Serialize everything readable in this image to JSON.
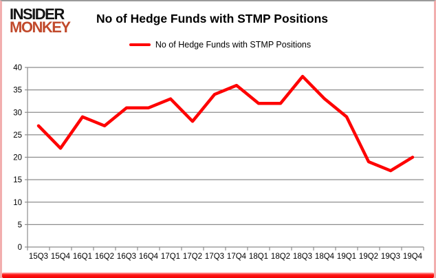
{
  "branding": {
    "logo_line1": "INSIDER",
    "logo_line2": "MONKEY",
    "logo_color1": "#141414",
    "logo_color2": "#c14a2c"
  },
  "header": {
    "title": "No of Hedge Funds with STMP Positions"
  },
  "legend": {
    "label": "No of Hedge Funds with STMP Positions"
  },
  "chart_data": {
    "type": "line",
    "title": "No of Hedge Funds with STMP Positions",
    "categories": [
      "15Q3",
      "15Q4",
      "16Q1",
      "16Q2",
      "16Q3",
      "16Q4",
      "17Q1",
      "17Q2",
      "17Q3",
      "17Q4",
      "18Q1",
      "18Q2",
      "18Q3",
      "18Q4",
      "19Q1",
      "19Q2",
      "19Q3",
      "19Q4"
    ],
    "series": [
      {
        "name": "No of Hedge Funds with STMP Positions",
        "values": [
          27,
          22,
          29,
          27,
          31,
          31,
          33,
          28,
          34,
          36,
          32,
          32,
          38,
          33,
          29,
          19,
          17,
          20
        ]
      }
    ],
    "xlabel": "",
    "ylabel": "",
    "ylim": [
      0,
      40
    ],
    "ytick_step": 5,
    "grid": true,
    "legend_position": "top",
    "line_color": "#fe0000",
    "grid_color": "#8c8c8c",
    "axis_text_color": "#000000"
  }
}
